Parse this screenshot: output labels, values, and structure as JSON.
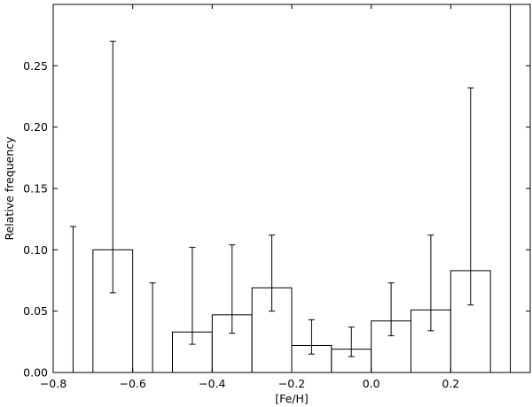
{
  "chart_data": {
    "type": "bar",
    "xlabel": "[Fe/H]",
    "ylabel": "Relative frequency",
    "xlim": [
      -0.8,
      0.4
    ],
    "ylim": [
      0.0,
      0.3
    ],
    "x_ticks": [
      "−0.8",
      "−0.6",
      "−0.4",
      "−0.2",
      "0.0",
      "0.2"
    ],
    "x_tick_values": [
      -0.8,
      -0.6,
      -0.4,
      -0.2,
      0.0,
      0.2
    ],
    "y_ticks": [
      "0.00",
      "0.05",
      "0.10",
      "0.15",
      "0.20",
      "0.25"
    ],
    "y_tick_values": [
      0.0,
      0.05,
      0.1,
      0.15,
      0.2,
      0.25
    ],
    "bin_width": 0.1,
    "bins": [
      {
        "center": -0.75,
        "value": 0.0,
        "err_low": 0.0,
        "err_high": 0.119
      },
      {
        "center": -0.65,
        "value": 0.1,
        "err_low": 0.065,
        "err_high": 0.27
      },
      {
        "center": -0.55,
        "value": 0.0,
        "err_low": 0.0,
        "err_high": 0.073
      },
      {
        "center": -0.45,
        "value": 0.033,
        "err_low": 0.023,
        "err_high": 0.102
      },
      {
        "center": -0.35,
        "value": 0.047,
        "err_low": 0.032,
        "err_high": 0.104
      },
      {
        "center": -0.25,
        "value": 0.069,
        "err_low": 0.05,
        "err_high": 0.112
      },
      {
        "center": -0.15,
        "value": 0.022,
        "err_low": 0.015,
        "err_high": 0.043
      },
      {
        "center": -0.05,
        "value": 0.019,
        "err_low": 0.013,
        "err_high": 0.037
      },
      {
        "center": 0.05,
        "value": 0.042,
        "err_low": 0.03,
        "err_high": 0.073
      },
      {
        "center": 0.15,
        "value": 0.051,
        "err_low": 0.034,
        "err_high": 0.112
      },
      {
        "center": 0.25,
        "value": 0.083,
        "err_low": 0.055,
        "err_high": 0.232
      },
      {
        "center": 0.35,
        "value": 0.0,
        "err_low": 0.0,
        "err_high": 0.3
      }
    ]
  }
}
